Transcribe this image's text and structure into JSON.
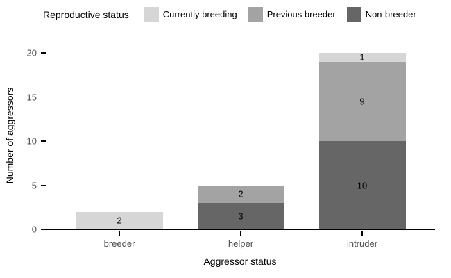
{
  "chart_data": {
    "type": "bar",
    "stacked": true,
    "title": "",
    "xlabel": "Aggressor status",
    "ylabel": "Number of aggressors",
    "legend_title": "Reproductive status",
    "legend_position": "top",
    "grid": false,
    "categories": [
      "breeder",
      "helper",
      "intruder"
    ],
    "series": [
      {
        "name": "Currently breeding",
        "color": "#d6d6d6",
        "values": [
          2,
          0,
          1
        ]
      },
      {
        "name": "Previous breeder",
        "color": "#a3a3a3",
        "values": [
          0,
          2,
          9
        ]
      },
      {
        "name": "Non-breeder",
        "color": "#666666",
        "values": [
          0,
          3,
          10
        ]
      }
    ],
    "stack_order_bottom_to_top": [
      "Non-breeder",
      "Previous breeder",
      "Currently breeding"
    ],
    "segment_labels": {
      "breeder": {
        "Currently breeding": "2"
      },
      "helper": {
        "Previous breeder": "2",
        "Non-breeder": "3"
      },
      "intruder": {
        "Currently breeding": "1",
        "Previous breeder": "9",
        "Non-breeder": "10"
      }
    },
    "ylim": [
      0,
      20
    ],
    "yticks": [
      "0",
      "5",
      "10",
      "15",
      "20"
    ]
  }
}
